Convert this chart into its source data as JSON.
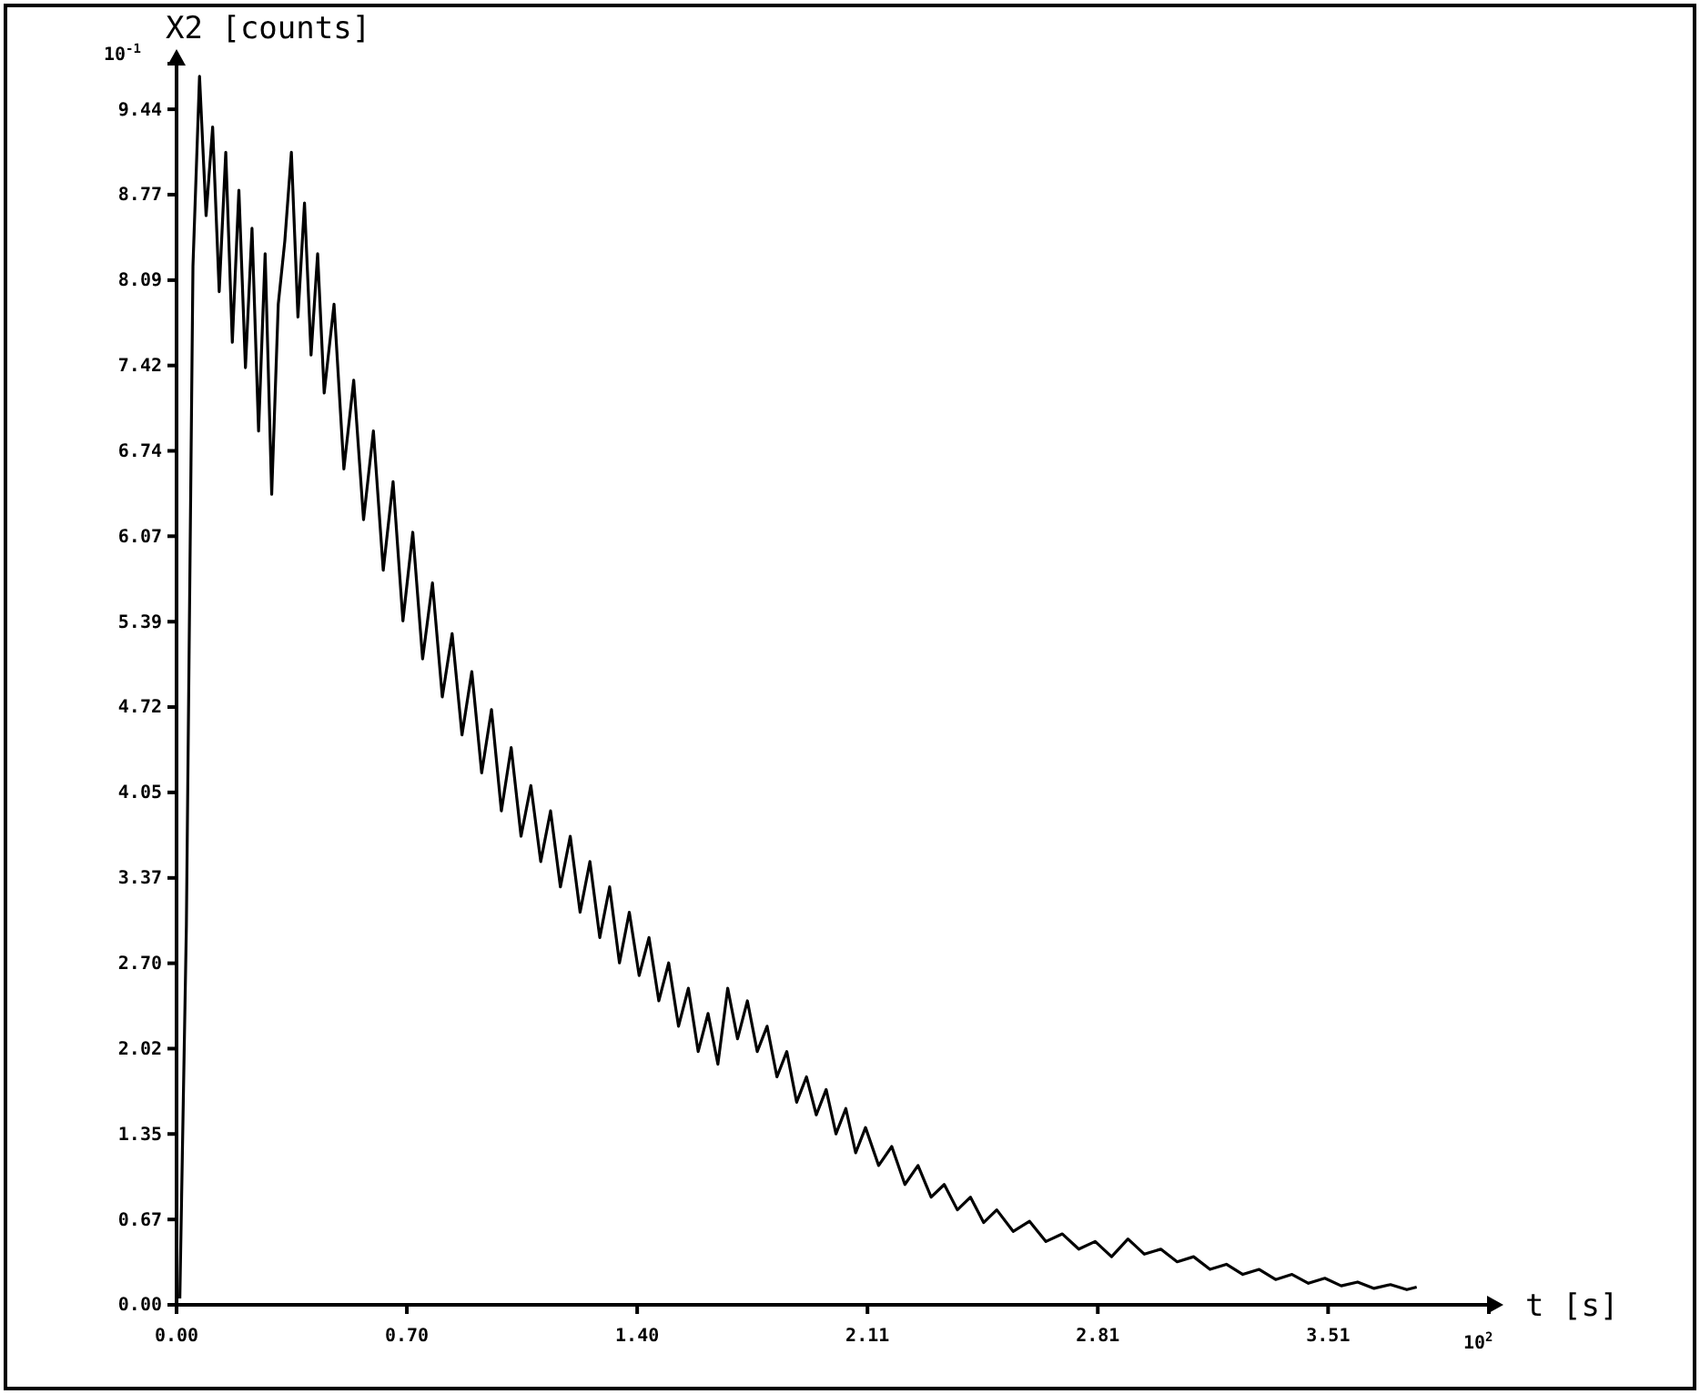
{
  "chart_data": {
    "type": "line",
    "xlabel": "t [s]",
    "ylabel": "X2 [counts]",
    "annotations": [
      "10$^{-1}$",
      "10$^{2}$"
    ],
    "xlim": [
      0,
      4.0
    ],
    "ylim": [
      0,
      9.8
    ],
    "xticks": [
      {
        "value": 0,
        "label": "0.00"
      },
      {
        "value": 0.702,
        "label": "0.70"
      },
      {
        "value": 1.404,
        "label": "1.40"
      },
      {
        "value": 2.106,
        "label": "2.11"
      },
      {
        "value": 2.808,
        "label": "2.81"
      },
      {
        "value": 3.51,
        "label": "3.51"
      }
    ],
    "yticks": [
      {
        "value": 0,
        "label": "0.00"
      },
      {
        "value": 0.674,
        "label": "0.67"
      },
      {
        "value": 1.349,
        "label": "1.35"
      },
      {
        "value": 2.023,
        "label": "2.02"
      },
      {
        "value": 2.697,
        "label": "2.70"
      },
      {
        "value": 3.371,
        "label": "3.37"
      },
      {
        "value": 4.046,
        "label": "4.05"
      },
      {
        "value": 4.72,
        "label": "4.72"
      },
      {
        "value": 5.394,
        "label": "5.39"
      },
      {
        "value": 6.069,
        "label": "6.07"
      },
      {
        "value": 6.743,
        "label": "6.74"
      },
      {
        "value": 7.417,
        "label": "7.42"
      },
      {
        "value": 8.091,
        "label": "8.09"
      },
      {
        "value": 8.766,
        "label": "8.77"
      },
      {
        "value": 9.44,
        "label": "9.44"
      }
    ],
    "grid": false,
    "marker": "none",
    "line_style": "solid",
    "series": [
      {
        "color": "#000000",
        "x": [
          0.01,
          0.03,
          0.05,
          0.07,
          0.09,
          0.11,
          0.13,
          0.15,
          0.17,
          0.19,
          0.21,
          0.23,
          0.25,
          0.27,
          0.29,
          0.31,
          0.33,
          0.35,
          0.37,
          0.39,
          0.41,
          0.43,
          0.45,
          0.48,
          0.51,
          0.54,
          0.57,
          0.6,
          0.63,
          0.66,
          0.69,
          0.72,
          0.75,
          0.78,
          0.81,
          0.84,
          0.87,
          0.9,
          0.93,
          0.96,
          0.99,
          1.02,
          1.05,
          1.08,
          1.11,
          1.14,
          1.17,
          1.2,
          1.23,
          1.26,
          1.29,
          1.32,
          1.35,
          1.38,
          1.41,
          1.44,
          1.47,
          1.5,
          1.53,
          1.56,
          1.59,
          1.62,
          1.65,
          1.68,
          1.71,
          1.74,
          1.77,
          1.8,
          1.83,
          1.86,
          1.89,
          1.92,
          1.95,
          1.98,
          2.01,
          2.04,
          2.07,
          2.1,
          2.14,
          2.18,
          2.22,
          2.26,
          2.3,
          2.34,
          2.38,
          2.42,
          2.46,
          2.5,
          2.55,
          2.6,
          2.65,
          2.7,
          2.75,
          2.8,
          2.85,
          2.9,
          2.95,
          3.0,
          3.05,
          3.1,
          3.15,
          3.2,
          3.25,
          3.3,
          3.35,
          3.4,
          3.45,
          3.5,
          3.55,
          3.6,
          3.65,
          3.7,
          3.75,
          3.78
        ],
        "values": [
          0.05,
          3.0,
          8.2,
          9.7,
          8.6,
          9.3,
          8.0,
          9.1,
          7.6,
          8.8,
          7.4,
          8.5,
          6.9,
          8.3,
          6.4,
          7.9,
          8.4,
          9.1,
          7.8,
          8.7,
          7.5,
          8.3,
          7.2,
          7.9,
          6.6,
          7.3,
          6.2,
          6.9,
          5.8,
          6.5,
          5.4,
          6.1,
          5.1,
          5.7,
          4.8,
          5.3,
          4.5,
          5.0,
          4.2,
          4.7,
          3.9,
          4.4,
          3.7,
          4.1,
          3.5,
          3.9,
          3.3,
          3.7,
          3.1,
          3.5,
          2.9,
          3.3,
          2.7,
          3.1,
          2.6,
          2.9,
          2.4,
          2.7,
          2.2,
          2.5,
          2.0,
          2.3,
          1.9,
          2.5,
          2.1,
          2.4,
          2.0,
          2.2,
          1.8,
          2.0,
          1.6,
          1.8,
          1.5,
          1.7,
          1.35,
          1.55,
          1.2,
          1.4,
          1.1,
          1.25,
          0.95,
          1.1,
          0.85,
          0.95,
          0.75,
          0.85,
          0.65,
          0.75,
          0.58,
          0.66,
          0.5,
          0.56,
          0.44,
          0.5,
          0.38,
          0.52,
          0.4,
          0.44,
          0.34,
          0.38,
          0.28,
          0.32,
          0.24,
          0.28,
          0.2,
          0.24,
          0.17,
          0.21,
          0.15,
          0.18,
          0.13,
          0.16,
          0.12,
          0.14
        ]
      }
    ]
  }
}
